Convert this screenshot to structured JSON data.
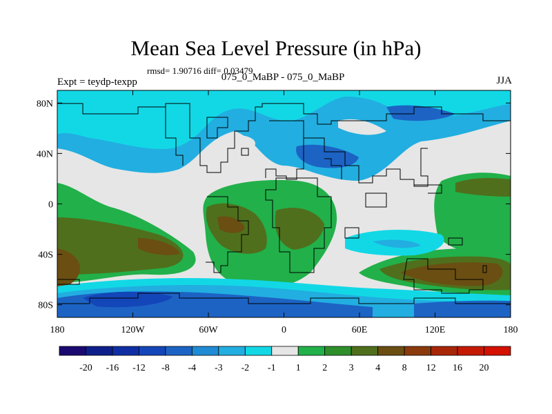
{
  "title": "Mean Sea Level Pressure (in hPa)",
  "stats": "rmsd= 1.90716 diff= 0.03479",
  "left_label": "Expt = teydp-texpp",
  "center_label": "075_0_MaBP - 075_0_MaBP",
  "right_label": "JJA",
  "axes": {
    "lat_ticks": [
      "80N",
      "40N",
      "0",
      "40S",
      "80S"
    ],
    "lat_values": [
      80,
      40,
      0,
      -40,
      -80
    ],
    "lon_ticks": [
      "180",
      "120W",
      "60W",
      "0",
      "60E",
      "120E",
      "180"
    ],
    "lon_values": [
      -180,
      -120,
      -60,
      0,
      60,
      120,
      180
    ],
    "lat_range": [
      -90,
      90
    ],
    "lon_range": [
      -180,
      180
    ]
  },
  "colorbar": {
    "labels": [
      "-20",
      "-16",
      "-12",
      "-8",
      "-4",
      "-3",
      "-2",
      "-1",
      "1",
      "2",
      "3",
      "4",
      "8",
      "12",
      "16",
      "20"
    ],
    "colors": [
      "#1a0a70",
      "#0e1f8c",
      "#102ea4",
      "#1346b8",
      "#1c63c4",
      "#1f8bd4",
      "#22aee0",
      "#12d8e6",
      "#e6e6e6",
      "#22b04a",
      "#2e8f2a",
      "#4f6f1c",
      "#6a4e12",
      "#8a3a0c",
      "#a82608",
      "#c41a04",
      "#d41000"
    ]
  },
  "colors": {
    "neutral": "#e6e6e6",
    "light_cyan": "#12d8e6",
    "cyan": "#22aee0",
    "blue": "#1c63c4",
    "dark_blue": "#1346b8",
    "green": "#22b04a",
    "olive": "#4f6f1c",
    "brown": "#6a4e12"
  }
}
